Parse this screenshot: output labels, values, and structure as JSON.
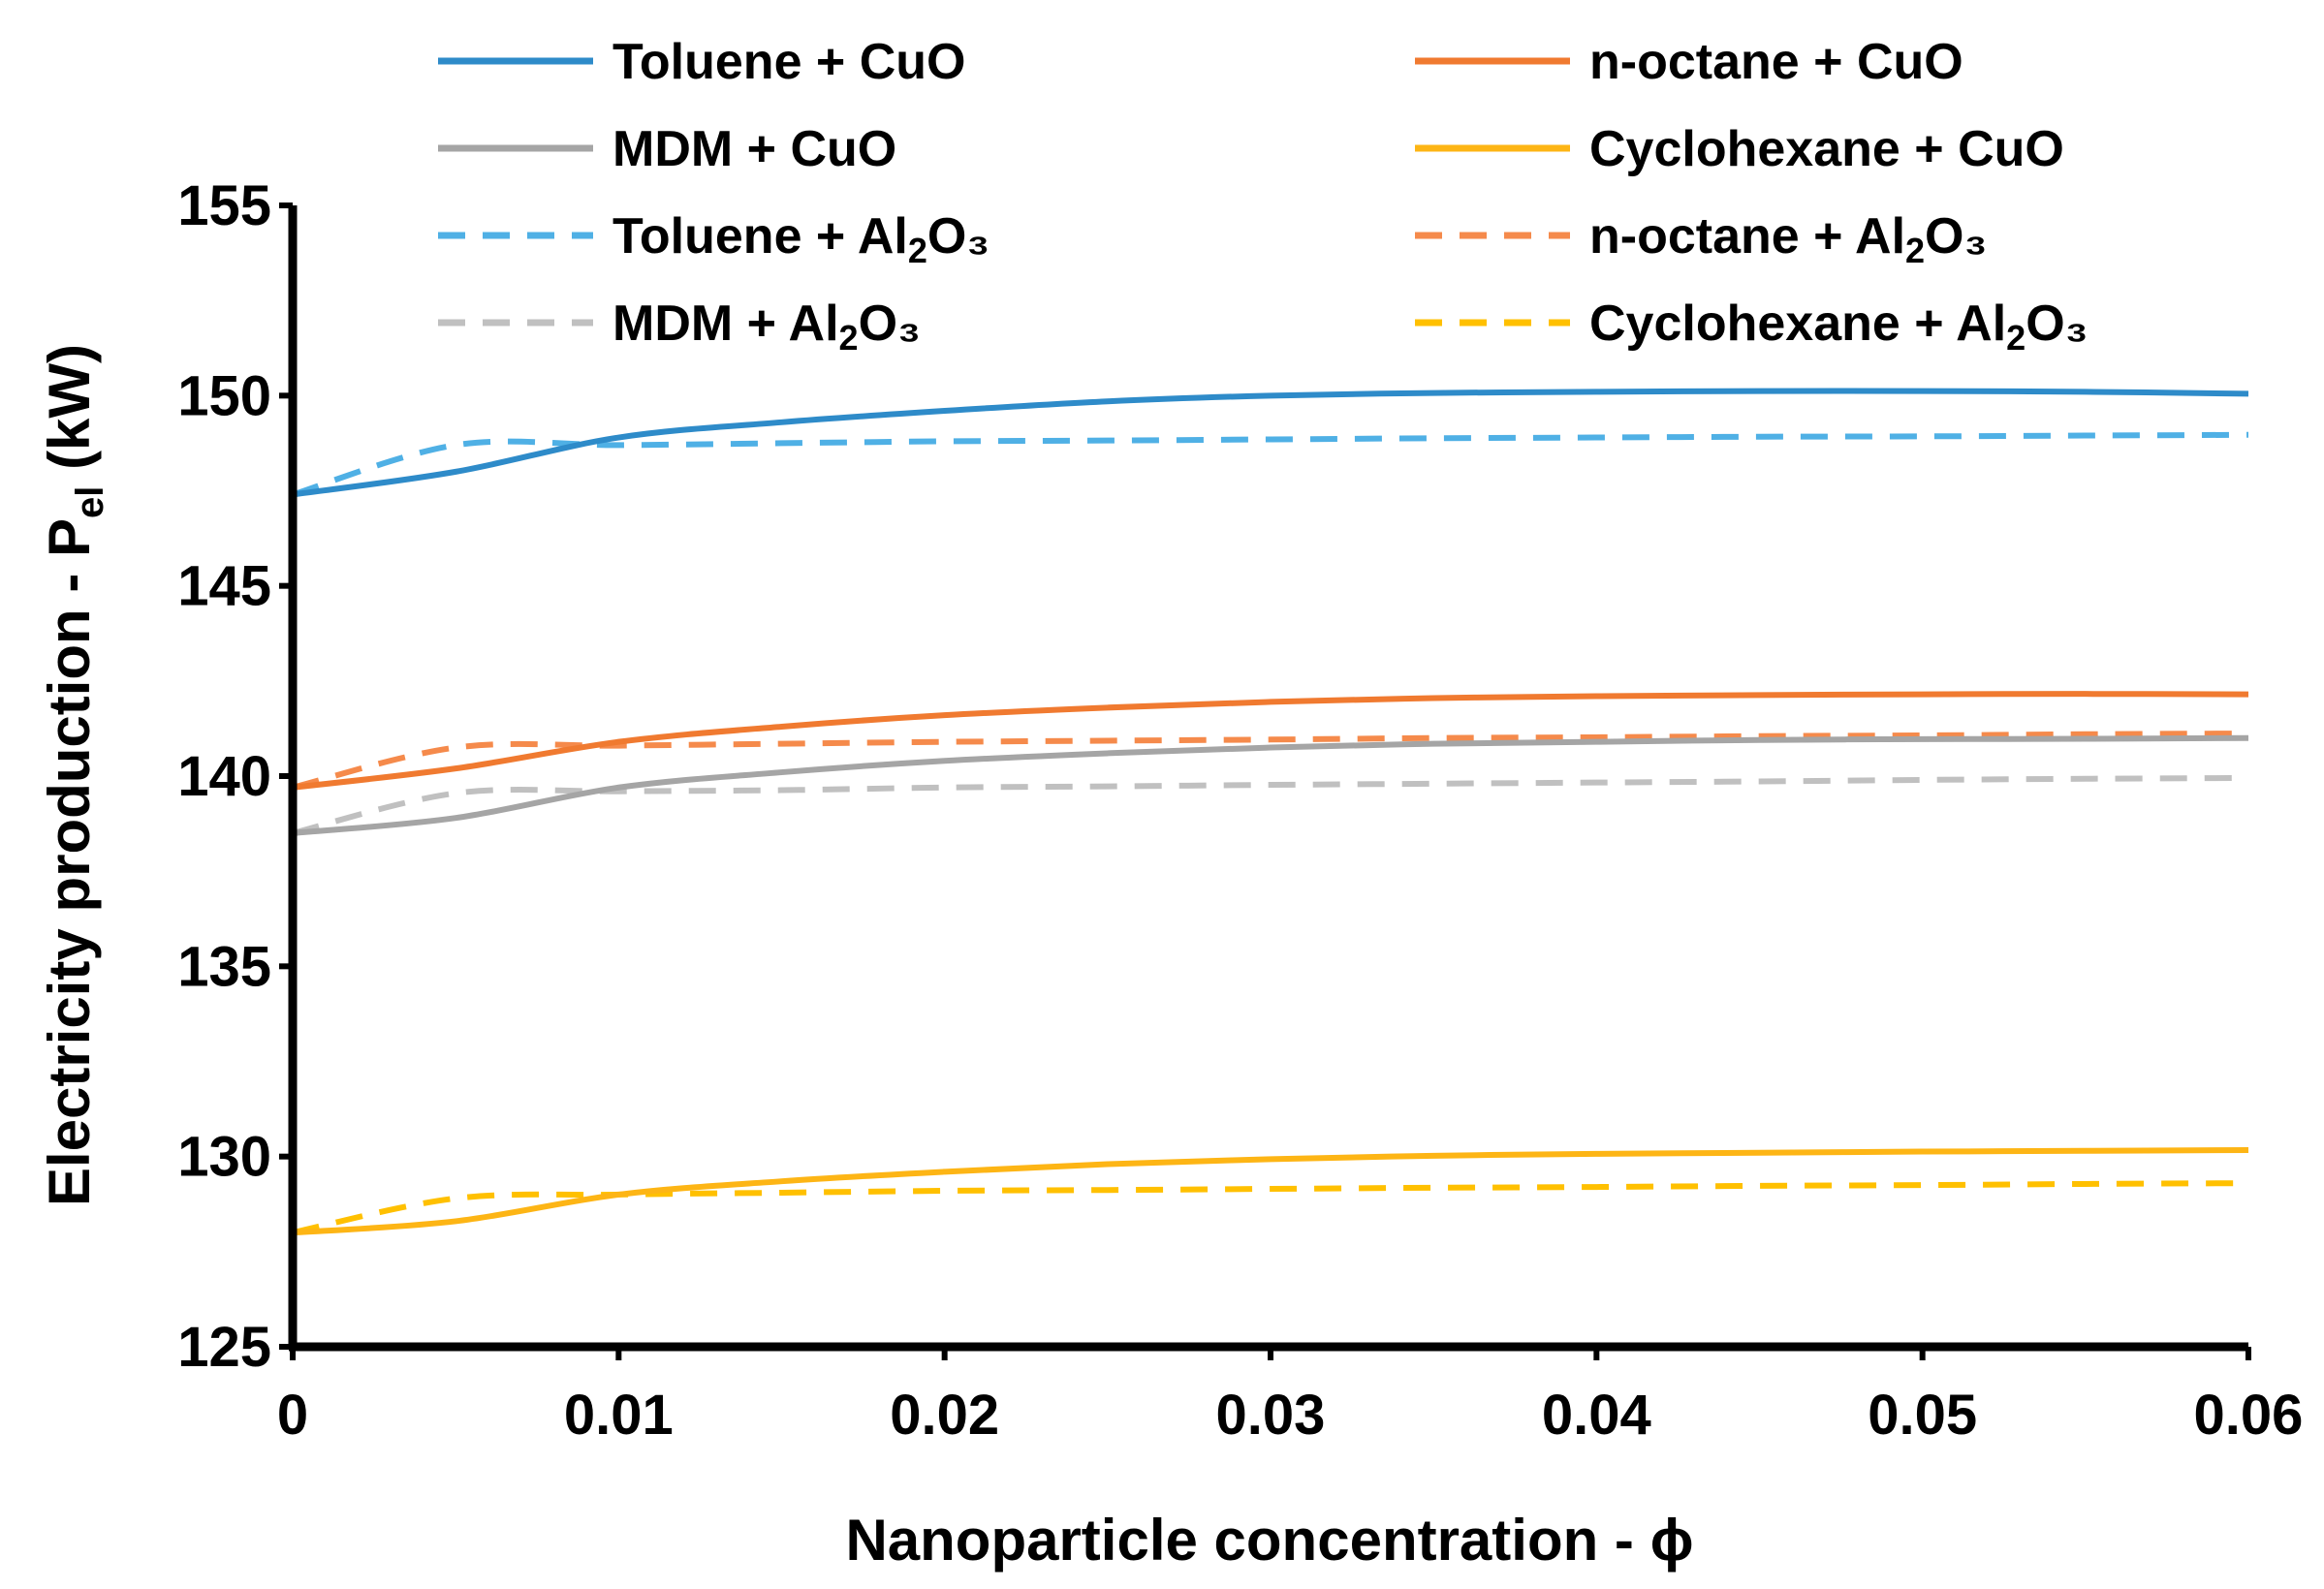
{
  "chart_data": {
    "type": "line",
    "title": "",
    "xlabel": "Nanoparticle concentration - ϕ",
    "ylabel": {
      "main": "Electricity production - P",
      "sub": "el",
      "unit": " (kW)"
    },
    "xlim": [
      0,
      0.06
    ],
    "ylim": [
      125,
      155
    ],
    "xticks": [
      0,
      0.01,
      0.02,
      0.03,
      0.04,
      0.05,
      0.06
    ],
    "xtick_labels": [
      "0",
      "0.01",
      "0.02",
      "0.03",
      "0.04",
      "0.05",
      "0.06"
    ],
    "yticks": [
      125,
      130,
      135,
      140,
      145,
      150,
      155
    ],
    "ytick_labels": [
      "125",
      "130",
      "135",
      "140",
      "145",
      "150",
      "155"
    ],
    "grid": false,
    "legend_position": "top",
    "x": [
      0,
      0.005,
      0.01,
      0.015,
      0.02,
      0.025,
      0.03,
      0.035,
      0.04,
      0.045,
      0.05,
      0.055,
      0.06
    ],
    "series": [
      {
        "key": "toluene-cuo",
        "name": "Toluene + CuO",
        "label_prefix": "Toluene + CuO",
        "label_sub": "",
        "label_suffix": "",
        "color": "#2E8BC9",
        "dash": false,
        "values": [
          147.4,
          148.0,
          148.9,
          149.3,
          149.6,
          149.85,
          150.0,
          150.07,
          150.1,
          150.12,
          150.12,
          150.1,
          150.05
        ]
      },
      {
        "key": "noctane-cuo",
        "name": "n-octane + CuO",
        "label_prefix": "n-octane + CuO",
        "label_sub": "",
        "label_suffix": "",
        "color": "#F07A30",
        "dash": false,
        "values": [
          139.7,
          140.2,
          140.9,
          141.3,
          141.6,
          141.8,
          141.95,
          142.05,
          142.1,
          142.13,
          142.15,
          142.16,
          142.15
        ]
      },
      {
        "key": "mdm-cuo",
        "name": "MDM + CuO",
        "label_prefix": "MDM + CuO",
        "label_sub": "",
        "label_suffix": "",
        "color": "#A5A5A5",
        "dash": false,
        "values": [
          138.5,
          138.9,
          139.7,
          140.1,
          140.4,
          140.6,
          140.75,
          140.85,
          140.9,
          140.95,
          140.97,
          140.98,
          141.0
        ]
      },
      {
        "key": "cyclohexane-cuo",
        "name": "Cyclohexane + CuO",
        "label_prefix": "Cyclohexane + CuO",
        "label_sub": "",
        "label_suffix": "",
        "color": "#FDB515",
        "dash": false,
        "values": [
          128.0,
          128.3,
          129.0,
          129.35,
          129.6,
          129.8,
          129.93,
          130.02,
          130.07,
          130.1,
          130.13,
          130.15,
          130.17
        ]
      },
      {
        "key": "toluene-al2o3",
        "name": "Toluene + Al2O3",
        "label_prefix": "Toluene + Al",
        "label_sub": "2",
        "label_suffix": "O₃",
        "color": "#4FB0E5",
        "dash": true,
        "values": [
          147.4,
          148.7,
          148.7,
          148.75,
          148.8,
          148.82,
          148.85,
          148.88,
          148.9,
          148.92,
          148.93,
          148.95,
          148.97
        ]
      },
      {
        "key": "noctane-al2o3",
        "name": "n-octane + Al2O3",
        "label_prefix": "n-octane + Al",
        "label_sub": "2",
        "label_suffix": "O₃",
        "color": "#F58A4B",
        "dash": true,
        "values": [
          139.7,
          140.75,
          140.8,
          140.85,
          140.9,
          140.93,
          140.96,
          141.0,
          141.02,
          141.05,
          141.07,
          141.1,
          141.12
        ]
      },
      {
        "key": "mdm-al2o3",
        "name": "MDM + Al2O3",
        "label_prefix": "MDM + Al",
        "label_sub": "2",
        "label_suffix": "O₃",
        "color": "#C0C0C0",
        "dash": true,
        "values": [
          138.5,
          139.55,
          139.6,
          139.63,
          139.7,
          139.73,
          139.77,
          139.8,
          139.83,
          139.86,
          139.9,
          139.93,
          139.95
        ]
      },
      {
        "key": "cyclohexane-al2o3",
        "name": "Cyclohexane + Al2O3",
        "label_prefix": "Cyclohexane + Al",
        "label_sub": "2",
        "label_suffix": "O₃",
        "color": "#FFC000",
        "dash": true,
        "values": [
          128.0,
          128.9,
          129.0,
          129.05,
          129.1,
          129.12,
          129.15,
          129.18,
          129.2,
          129.23,
          129.25,
          129.28,
          129.3
        ]
      }
    ]
  }
}
